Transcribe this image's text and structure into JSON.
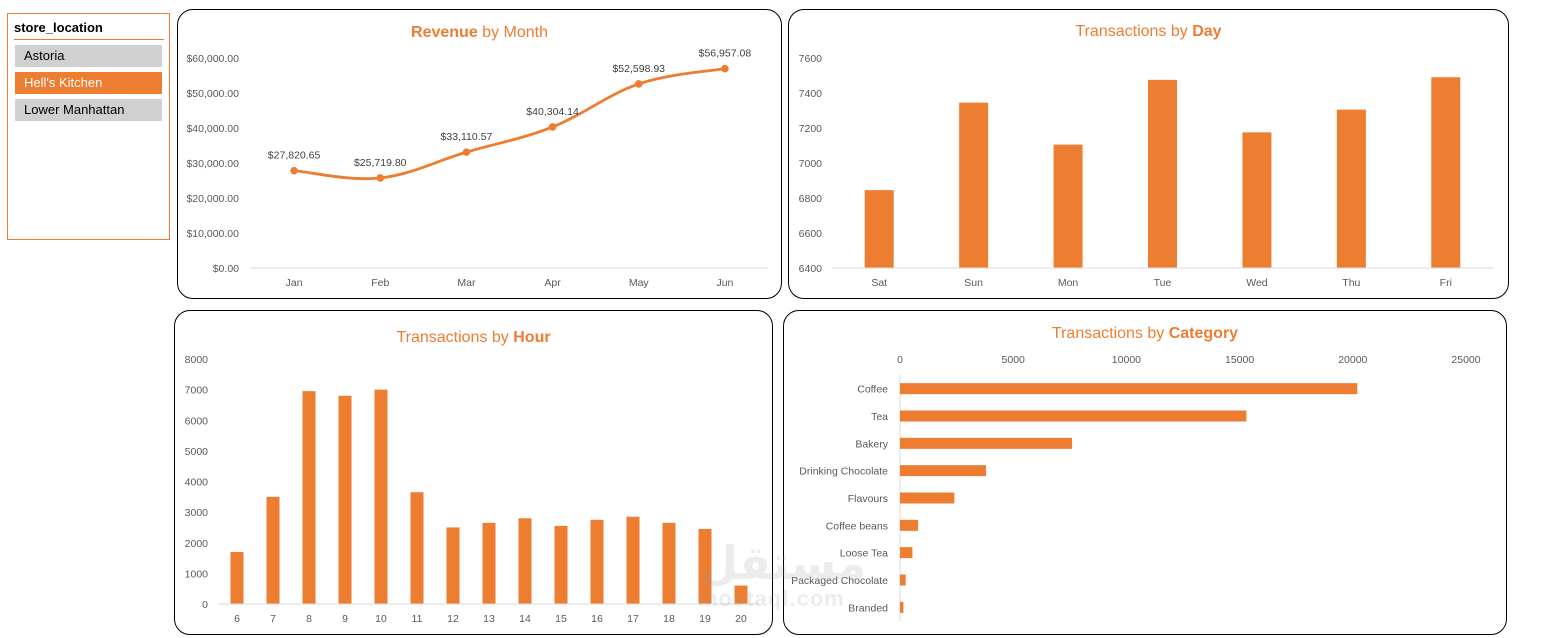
{
  "slicer": {
    "title": "store_location",
    "items": [
      {
        "label": "Astoria",
        "selected": false
      },
      {
        "label": "Hell's Kitchen",
        "selected": true
      },
      {
        "label": "Lower Manhattan",
        "selected": false
      }
    ]
  },
  "colors": {
    "accent": "#ED7D31",
    "axis_text": "#595959",
    "gridline": "#D9D9D9"
  },
  "watermark": {
    "text": "mostaql.com",
    "arabic": "مستقل"
  },
  "chart_data": [
    {
      "type": "line",
      "title_bold": "Revenue",
      "title_rest": " by Month",
      "categories": [
        "Jan",
        "Feb",
        "Mar",
        "Apr",
        "May",
        "Jun"
      ],
      "values": [
        27820.65,
        25719.8,
        33110.57,
        40304.14,
        52598.93,
        56957.08
      ],
      "data_labels": [
        "$27,820.65",
        "$25,719.80",
        "$33,110.57",
        "$40,304.14",
        "$52,598.93",
        "$56,957.08"
      ],
      "ylim": [
        0,
        60000
      ],
      "yticks": [
        "$0.00",
        "$10,000.00",
        "$20,000.00",
        "$30,000.00",
        "$40,000.00",
        "$50,000.00",
        "$60,000.00"
      ],
      "grid": false
    },
    {
      "type": "bar",
      "title_rest": "Transactions by ",
      "title_bold": "Day",
      "categories": [
        "Sat",
        "Sun",
        "Mon",
        "Tue",
        "Wed",
        "Thu",
        "Fri"
      ],
      "values": [
        6845,
        7345,
        7105,
        7475,
        7175,
        7305,
        7490
      ],
      "ylim": [
        6400,
        7600
      ],
      "yticks": [
        "6400",
        "6600",
        "6800",
        "7000",
        "7200",
        "7400",
        "7600"
      ],
      "grid": false
    },
    {
      "type": "bar",
      "title_rest": "Transactions by ",
      "title_bold": "Hour",
      "categories": [
        "6",
        "7",
        "8",
        "9",
        "10",
        "11",
        "12",
        "13",
        "14",
        "15",
        "16",
        "17",
        "18",
        "19",
        "20"
      ],
      "values": [
        1700,
        3500,
        6950,
        6800,
        7000,
        3650,
        2500,
        2650,
        2800,
        2550,
        2750,
        2850,
        2650,
        2450,
        600
      ],
      "ylim": [
        0,
        8000
      ],
      "yticks": [
        "0",
        "1000",
        "2000",
        "3000",
        "4000",
        "5000",
        "6000",
        "7000",
        "8000"
      ],
      "grid": false
    },
    {
      "type": "bar",
      "orientation": "horizontal",
      "title_rest": "Transactions by ",
      "title_bold": "Category",
      "categories": [
        "Coffee",
        "Tea",
        "Bakery",
        "Drinking Chocolate",
        "Flavours",
        "Coffee beans",
        "Loose Tea",
        "Packaged Chocolate",
        "Branded"
      ],
      "values": [
        20200,
        15300,
        7600,
        3800,
        2400,
        800,
        550,
        250,
        150
      ],
      "xlim": [
        0,
        25000
      ],
      "xticks": [
        "0",
        "5000",
        "10000",
        "15000",
        "20000",
        "25000"
      ],
      "grid": false
    }
  ]
}
